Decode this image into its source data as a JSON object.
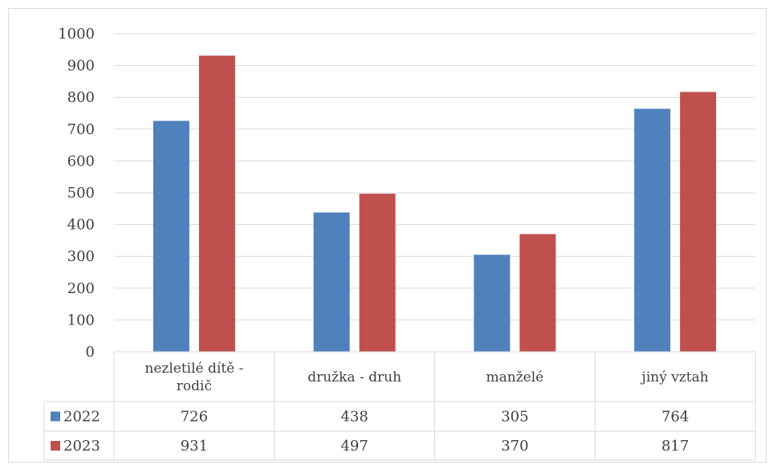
{
  "chart_data": {
    "type": "bar",
    "categories": [
      "nezletilé dítě - rodič",
      "družka - druh",
      "manželé",
      "jiný vztah"
    ],
    "category_lines": [
      [
        "nezletilé dítě -",
        "rodič"
      ],
      [
        "družka - druh"
      ],
      [
        "manželé"
      ],
      [
        "jiný vztah"
      ]
    ],
    "series": [
      {
        "name": "2022",
        "values": [
          726,
          438,
          305,
          764
        ],
        "color": "#4f81bd"
      },
      {
        "name": "2023",
        "values": [
          931,
          497,
          370,
          817
        ],
        "color": "#c0504d"
      }
    ],
    "ylim": [
      0,
      1000
    ],
    "yticks": [
      0,
      100,
      200,
      300,
      400,
      500,
      600,
      700,
      800,
      900,
      1000
    ],
    "grid": true,
    "legend": "data-table",
    "title": "",
    "xlabel": "",
    "ylabel": ""
  }
}
